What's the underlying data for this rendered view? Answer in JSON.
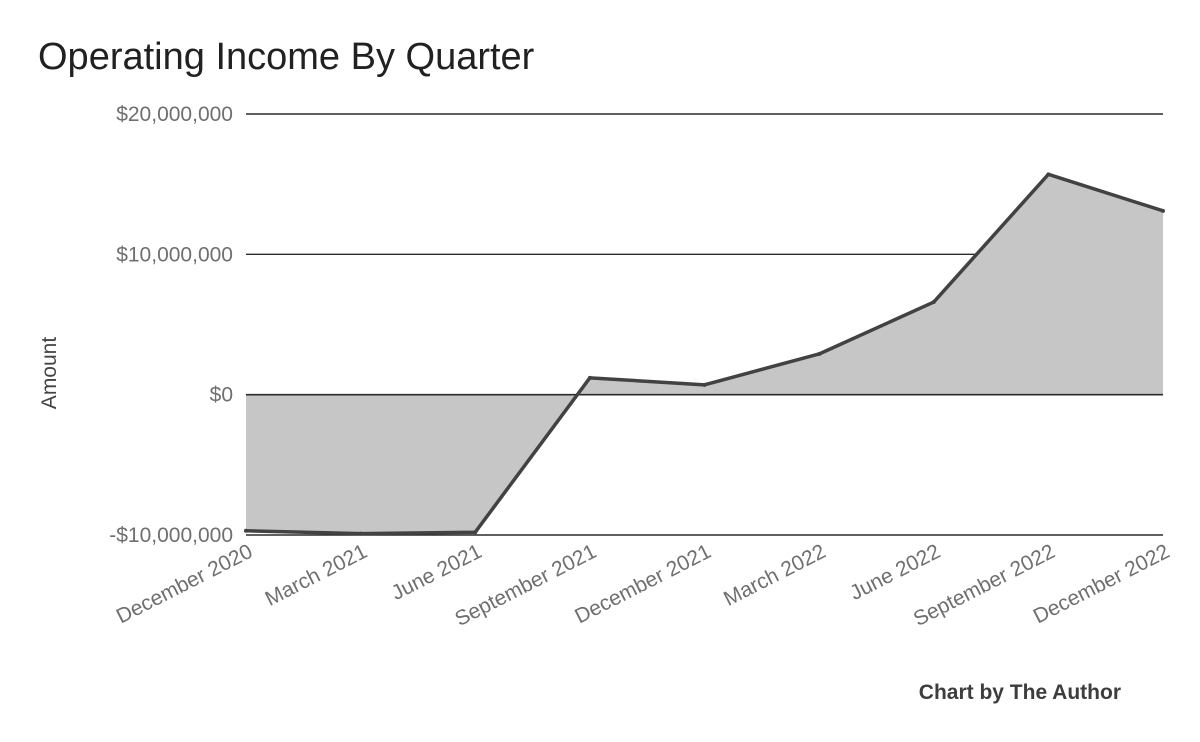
{
  "chart_data": {
    "type": "area",
    "title": "Operating Income By Quarter",
    "xlabel": "",
    "ylabel": "Amount",
    "credit": "Chart by The Author",
    "categories": [
      "December 2020",
      "March 2021",
      "June 2021",
      "September 2021",
      "December 2021",
      "March 2022",
      "June 2022",
      "September 2022",
      "December 2022"
    ],
    "values": [
      -9700000,
      -9900000,
      -9800000,
      1200000,
      700000,
      2900000,
      6600000,
      15700000,
      13100000
    ],
    "ylim": [
      -10000000,
      20000000
    ],
    "yticks": [
      -10000000,
      0,
      10000000,
      20000000
    ],
    "ytick_labels": [
      "-$10,000,000",
      "$0",
      "$10,000,000",
      "$20,000,000"
    ],
    "grid": true,
    "colors": {
      "fill": "#c6c6c6",
      "line": "#424242",
      "grid": "#2b2b2b"
    }
  }
}
